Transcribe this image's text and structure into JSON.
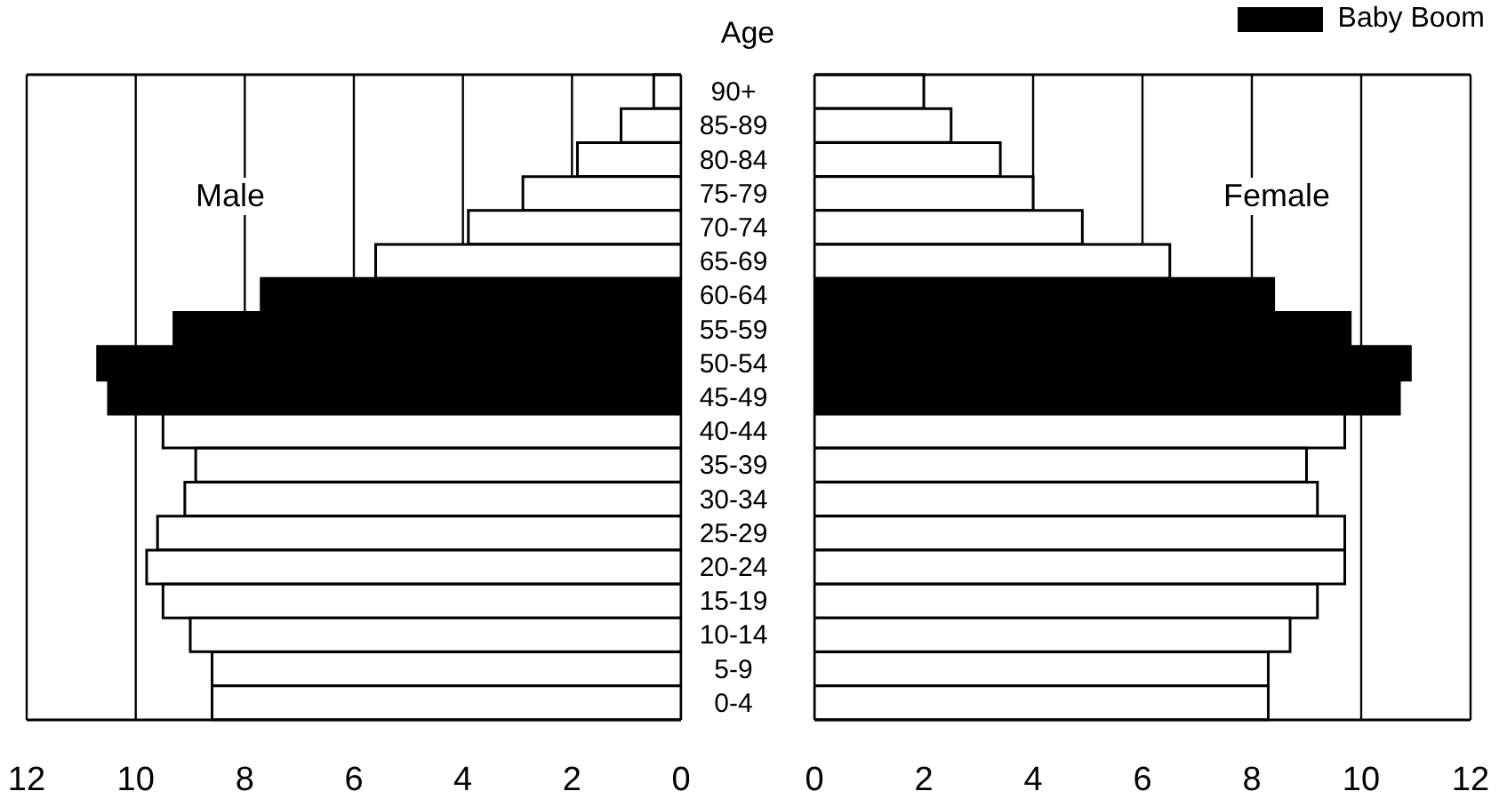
{
  "chart_data": [
    {
      "type": "bar",
      "orientation": "horizontal",
      "stacked": true,
      "annotations": [
        "Male"
      ],
      "categories": [
        "90+",
        "85-89",
        "80-84",
        "75-79",
        "70-74",
        "65-69",
        "60-64",
        "55-59",
        "50-54",
        "45-49",
        "40-44",
        "35-39",
        "30-34",
        "25-29",
        "20-24",
        "15-19",
        "10-14",
        "5-9",
        "0-4"
      ],
      "series": [
        {
          "color": "#000000",
          "values": [
            null,
            null,
            null,
            null,
            null,
            null,
            7.7,
            9.3,
            10.7,
            10.5,
            null,
            null,
            null,
            null,
            null,
            null,
            null,
            null,
            null
          ]
        },
        {
          "color": "#ffffff",
          "values": [
            0.5,
            1.1,
            1.9,
            2.9,
            3.9,
            5.6,
            null,
            null,
            null,
            null,
            9.5,
            8.9,
            9.1,
            9.6,
            9.8,
            9.5,
            9.0,
            8.6,
            8.6
          ]
        }
      ],
      "xlim": [
        12,
        0
      ],
      "xticks": [
        12,
        10,
        8,
        6,
        4,
        2,
        0
      ],
      "grid": "x",
      "tick_labels": "x"
    },
    {
      "type": "bar",
      "orientation": "horizontal",
      "stacked": true,
      "ylabel": "Age",
      "annotations": [
        "Female"
      ],
      "categories": [
        "90+",
        "85-89",
        "80-84",
        "75-79",
        "70-74",
        "65-69",
        "60-64",
        "55-59",
        "50-54",
        "45-49",
        "40-44",
        "35-39",
        "30-34",
        "25-29",
        "20-24",
        "15-19",
        "10-14",
        "5-9",
        "0-4"
      ],
      "series": [
        {
          "name": "Baby Boom",
          "color": "#000000",
          "values": [
            null,
            null,
            null,
            null,
            null,
            null,
            8.4,
            9.8,
            10.9,
            10.7,
            null,
            null,
            null,
            null,
            null,
            null,
            null,
            null,
            null
          ]
        },
        {
          "color": "#ffffff",
          "values": [
            2.0,
            2.5,
            3.4,
            4.0,
            4.9,
            6.5,
            null,
            null,
            null,
            null,
            9.7,
            9.0,
            9.2,
            9.7,
            9.7,
            9.2,
            8.7,
            8.3,
            8.3
          ]
        }
      ],
      "xlim": [
        0,
        12
      ],
      "xticks": [
        0,
        2,
        4,
        6,
        8,
        10,
        12
      ],
      "grid": "x",
      "legend": "top right"
    }
  ]
}
